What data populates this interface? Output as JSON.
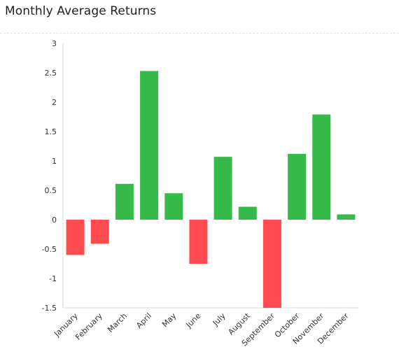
{
  "header": {
    "title": "Monthly Average Returns"
  },
  "colors": {
    "positive": "#36ba4a",
    "negative": "#ff4b4f",
    "axis": "#dddddd",
    "text": "#333333"
  },
  "chart_data": {
    "type": "bar",
    "title": "Monthly Average Returns",
    "xlabel": "",
    "ylabel": "",
    "categories": [
      "January",
      "February",
      "March",
      "April",
      "May",
      "June",
      "July",
      "August",
      "September",
      "October",
      "November",
      "December"
    ],
    "values": [
      -0.6,
      -0.41,
      0.61,
      2.53,
      0.45,
      -0.75,
      1.07,
      0.22,
      -1.5,
      1.12,
      1.79,
      0.09
    ],
    "ylim": [
      -1.5,
      3
    ],
    "yticks": [
      "3",
      "2.5",
      "2",
      "1.5",
      "1",
      "0.5",
      "0",
      "-0.5",
      "-1",
      "-1.5"
    ],
    "ytick_values": [
      3,
      2.5,
      2,
      1.5,
      1,
      0.5,
      0,
      -0.5,
      -1,
      -1.5
    ],
    "grid": false,
    "legend": "none"
  }
}
